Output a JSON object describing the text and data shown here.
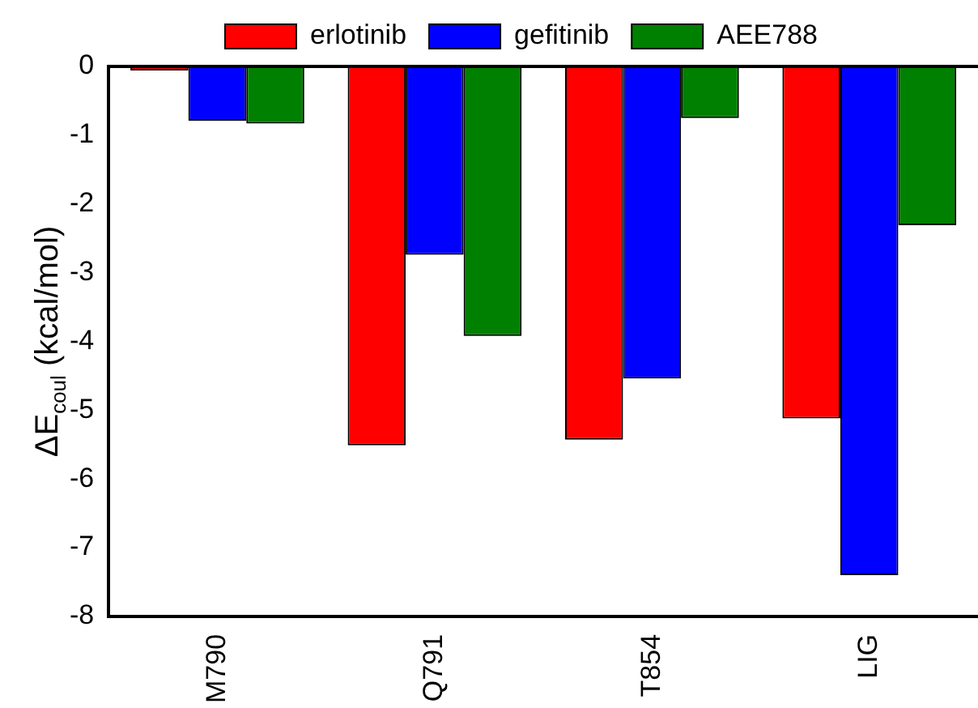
{
  "chart_data": {
    "type": "bar",
    "ylabel": "ΔE$_{coul}$ (kcal/mol)",
    "categories": [
      "M790",
      "Q791",
      "T854",
      "LIG"
    ],
    "series": [
      {
        "name": "erlotinib",
        "color": "#ff0000",
        "values": [
          -0.06,
          -5.51,
          -5.43,
          -5.12
        ]
      },
      {
        "name": "gefitinib",
        "color": "#0000ff",
        "values": [
          -0.79,
          -2.74,
          -4.54,
          -7.4
        ]
      },
      {
        "name": "AEE788",
        "color": "#008000",
        "values": [
          -0.83,
          -3.92,
          -0.75,
          -2.31
        ]
      }
    ],
    "ylim": [
      -8,
      0
    ],
    "yticks": [
      -8,
      -7,
      -6,
      -5,
      -4,
      -3,
      -2,
      -1,
      0
    ],
    "grid": false,
    "legend": "top"
  }
}
